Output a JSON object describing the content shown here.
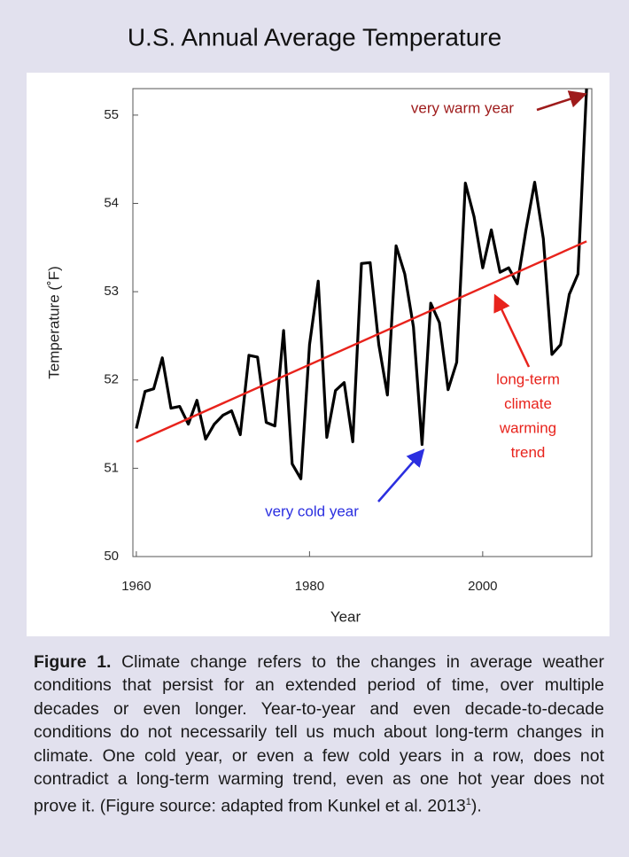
{
  "chart_data": {
    "type": "line",
    "title": "U.S. Annual Average Temperature",
    "x_label": "Year",
    "y_label": "Temperature (˚F)",
    "x": [
      1960,
      1961,
      1962,
      1963,
      1964,
      1965,
      1966,
      1967,
      1968,
      1969,
      1970,
      1971,
      1972,
      1973,
      1974,
      1975,
      1976,
      1977,
      1978,
      1979,
      1980,
      1981,
      1982,
      1983,
      1984,
      1985,
      1986,
      1987,
      1988,
      1989,
      1990,
      1991,
      1992,
      1993,
      1994,
      1995,
      1996,
      1997,
      1998,
      1999,
      2000,
      2001,
      2002,
      2003,
      2004,
      2005,
      2006,
      2007,
      2008,
      2009,
      2010,
      2011,
      2012
    ],
    "values": [
      51.45,
      51.87,
      51.9,
      52.25,
      51.68,
      51.7,
      51.5,
      51.77,
      51.33,
      51.5,
      51.6,
      51.65,
      51.38,
      52.28,
      52.26,
      51.52,
      51.48,
      52.56,
      51.05,
      50.88,
      52.4,
      53.12,
      51.35,
      51.88,
      51.97,
      51.3,
      53.32,
      53.33,
      52.4,
      51.83,
      53.52,
      53.2,
      52.6,
      51.27,
      52.87,
      52.65,
      51.89,
      52.2,
      54.23,
      53.85,
      53.27,
      53.7,
      53.22,
      53.27,
      53.09,
      53.7,
      54.24,
      53.6,
      52.29,
      52.4,
      52.97,
      53.2,
      55.3
    ],
    "color": "#000000",
    "trend": {
      "x": [
        1960,
        2012
      ],
      "values": [
        51.3,
        53.57
      ],
      "color": "#e8231c"
    },
    "xlim": [
      1959.6,
      2012.6
    ],
    "ylim": [
      50,
      55.3
    ],
    "xticks": [
      1960,
      1980,
      2000
    ],
    "yticks": [
      50,
      51,
      52,
      53,
      54,
      55
    ],
    "annotations": {
      "warm": {
        "text": "very warm year",
        "color": "#9e1b1b"
      },
      "trend": {
        "lines": [
          "long-term",
          "climate",
          "warming",
          "trend"
        ],
        "color": "#e8231c"
      },
      "cold": {
        "text": "very cold year",
        "color": "#2b2fe0"
      }
    }
  },
  "caption": {
    "label": "Figure 1.",
    "text": " Climate change refers to the changes in average weather conditions that persist for an extended period of time, over multiple decades or even longer. Year-to-year and even decade-to-decade conditions do not necessarily tell us much about long-term changes in climate. One cold year, or even a few cold years in a row, does not contradict a long-term warming trend, even as one hot year does not prove it. (Figure source: adapted from Kunkel et al. 2013",
    "superscript": "1",
    "end": ")."
  }
}
